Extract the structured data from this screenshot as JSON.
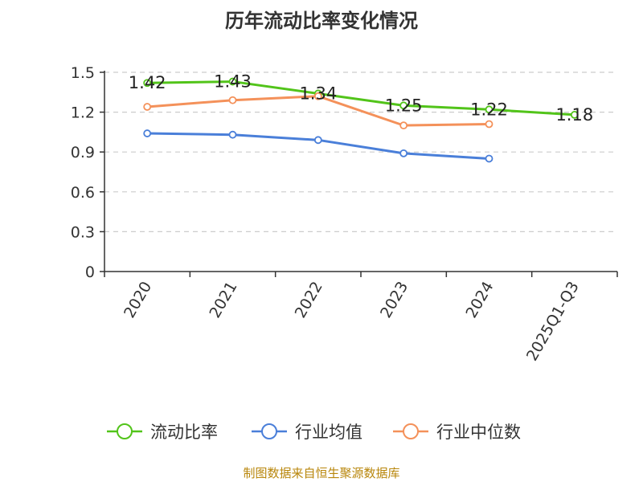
{
  "chart_data": {
    "type": "line",
    "title": "历年流动比率变化情况",
    "categories": [
      "2020",
      "2021",
      "2022",
      "2023",
      "2024",
      "2025Q1-Q3"
    ],
    "ylim": [
      0,
      1.5
    ],
    "yticks": [
      "0",
      "0.3",
      "0.6",
      "0.9",
      "1.2",
      "1.5"
    ],
    "ytick_values": [
      0,
      0.3,
      0.6,
      0.9,
      1.2,
      1.5
    ],
    "grid": true,
    "legend_position": "bottom",
    "series": [
      {
        "name": "流动比率",
        "color": "#52c41a",
        "values": [
          1.42,
          1.43,
          1.34,
          1.25,
          1.22,
          1.18
        ],
        "labels": [
          "1.42",
          "1.43",
          "1.34",
          "1.25",
          "1.22",
          "1.18"
        ]
      },
      {
        "name": "行业均值",
        "color": "#4a7fd9",
        "values": [
          1.04,
          1.03,
          0.99,
          0.89,
          0.85,
          null
        ]
      },
      {
        "name": "行业中位数",
        "color": "#f4915a",
        "values": [
          1.24,
          1.29,
          1.32,
          1.1,
          1.11,
          null
        ]
      }
    ]
  },
  "source": "制图数据来自恒生聚源数据库"
}
